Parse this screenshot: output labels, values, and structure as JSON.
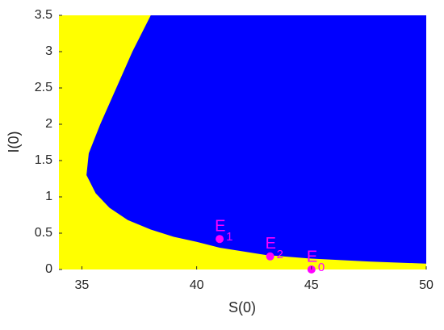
{
  "chart_data": {
    "type": "region",
    "x_label": "S(0)",
    "y_label": "I(0)",
    "xlim": [
      34,
      50
    ],
    "ylim": [
      0,
      3.5
    ],
    "xticks": [
      35,
      40,
      45,
      50
    ],
    "yticks": [
      0,
      0.5,
      1,
      1.5,
      2,
      2.5,
      3,
      3.5
    ],
    "background_color": "#ffff00",
    "region": {
      "color": "#0000ff",
      "x": [
        50,
        47.5,
        45,
        43,
        41,
        40,
        39,
        38,
        37,
        36.2,
        35.6,
        35.2,
        35.3,
        35.8,
        36.5,
        37.2,
        38.0,
        50
      ],
      "y": [
        0.08,
        0.11,
        0.15,
        0.2,
        0.3,
        0.38,
        0.45,
        0.55,
        0.68,
        0.85,
        1.05,
        1.3,
        1.6,
        2.0,
        2.5,
        3.0,
        3.5,
        3.5
      ]
    },
    "points": {
      "color": "#ff00ff",
      "x": [
        41,
        43.2,
        45
      ],
      "y": [
        0.42,
        0.18,
        0
      ],
      "labels": [
        "E",
        "E",
        "E"
      ],
      "subscripts": [
        "1",
        "2",
        "0"
      ]
    }
  }
}
